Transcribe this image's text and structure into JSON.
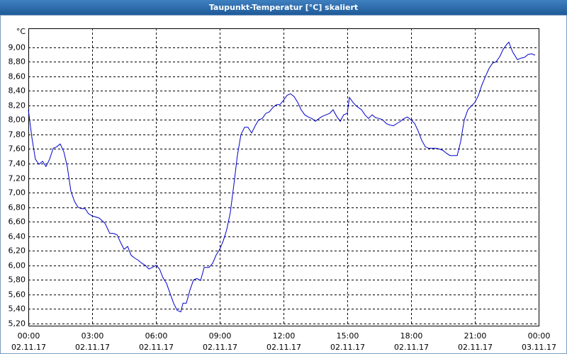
{
  "chart_data": {
    "type": "line",
    "title": "Taupunkt-Temperatur [°C] skaliert",
    "y_unit": "°C",
    "color": "#0000cc",
    "grid": true,
    "xlim": [
      0,
      24
    ],
    "ylim": [
      5.17,
      9.26
    ],
    "xticks": [
      {
        "value": 0,
        "label": "00:00"
      },
      {
        "value": 3,
        "label": "03:00"
      },
      {
        "value": 6,
        "label": "06:00"
      },
      {
        "value": 9,
        "label": "09:00"
      },
      {
        "value": 12,
        "label": "12:00"
      },
      {
        "value": 15,
        "label": "15:00"
      },
      {
        "value": 18,
        "label": "18:00"
      },
      {
        "value": 21,
        "label": "21:00"
      },
      {
        "value": 24,
        "label": "00:00"
      }
    ],
    "xtick_dates": [
      "02.11.17",
      "02.11.17",
      "02.11.17",
      "02.11.17",
      "02.11.17",
      "02.11.17",
      "02.11.17",
      "02.11.17",
      "03.11.17"
    ],
    "yticks": [
      {
        "value": 5.2,
        "label": "5,20"
      },
      {
        "value": 5.4,
        "label": "5,40"
      },
      {
        "value": 5.6,
        "label": "5,60"
      },
      {
        "value": 5.8,
        "label": "5,80"
      },
      {
        "value": 6.0,
        "label": "6,00"
      },
      {
        "value": 6.2,
        "label": "6,20"
      },
      {
        "value": 6.4,
        "label": "6,40"
      },
      {
        "value": 6.6,
        "label": "6,60"
      },
      {
        "value": 6.8,
        "label": "6,80"
      },
      {
        "value": 7.0,
        "label": "7,00"
      },
      {
        "value": 7.2,
        "label": "7,20"
      },
      {
        "value": 7.4,
        "label": "7,40"
      },
      {
        "value": 7.6,
        "label": "7,60"
      },
      {
        "value": 7.8,
        "label": "7,80"
      },
      {
        "value": 8.0,
        "label": "8,00"
      },
      {
        "value": 8.2,
        "label": "8,20"
      },
      {
        "value": 8.4,
        "label": "8,40"
      },
      {
        "value": 8.6,
        "label": "8,60"
      },
      {
        "value": 8.8,
        "label": "8,80"
      },
      {
        "value": 9.0,
        "label": "9,00"
      }
    ],
    "x": [
      0,
      0.17,
      0.33,
      0.5,
      0.67,
      0.83,
      1,
      1.17,
      1.33,
      1.5,
      1.67,
      1.83,
      2,
      2.17,
      2.33,
      2.5,
      2.67,
      2.83,
      3,
      3.33,
      3.6,
      3.83,
      4,
      4.17,
      4.33,
      4.5,
      4.67,
      4.83,
      5,
      5.17,
      5.33,
      5.5,
      5.67,
      5.83,
      6,
      6.17,
      6.33,
      6.5,
      6.67,
      6.83,
      7,
      7.17,
      7.27,
      7.43,
      7.6,
      7.77,
      7.93,
      8.1,
      8.27,
      8.5,
      8.67,
      8.83,
      9,
      9.17,
      9.33,
      9.5,
      9.67,
      9.83,
      10,
      10.17,
      10.33,
      10.5,
      10.67,
      10.83,
      11,
      11.17,
      11.33,
      11.5,
      11.67,
      11.83,
      12,
      12.17,
      12.33,
      12.5,
      12.67,
      12.83,
      13,
      13.17,
      13.33,
      13.5,
      13.67,
      13.83,
      14,
      14.17,
      14.33,
      14.5,
      14.67,
      14.83,
      15,
      15.1,
      15.27,
      15.43,
      15.67,
      15.83,
      16,
      16.17,
      16.33,
      16.5,
      16.67,
      16.83,
      17,
      17.17,
      17.33,
      17.5,
      17.67,
      17.83,
      18,
      18.17,
      18.33,
      18.5,
      18.67,
      18.83,
      19,
      19.17,
      19.33,
      19.5,
      19.67,
      19.83,
      20,
      20.17,
      20.33,
      20.5,
      20.67,
      20.83,
      21,
      21.17,
      21.33,
      21.5,
      21.67,
      21.83,
      22,
      22.17,
      22.33,
      22.5,
      22.6,
      22.77,
      23,
      23.17,
      23.33,
      23.5,
      23.67,
      23.83
    ],
    "values": [
      8.14,
      7.75,
      7.46,
      7.39,
      7.43,
      7.36,
      7.46,
      7.61,
      7.63,
      7.67,
      7.56,
      7.36,
      7.02,
      6.88,
      6.8,
      6.78,
      6.78,
      6.71,
      6.68,
      6.65,
      6.58,
      6.44,
      6.44,
      6.42,
      6.32,
      6.22,
      6.26,
      6.14,
      6.1,
      6.07,
      6.03,
      6.0,
      5.95,
      5.97,
      6.0,
      5.95,
      5.83,
      5.75,
      5.61,
      5.48,
      5.38,
      5.36,
      5.48,
      5.48,
      5.66,
      5.8,
      5.82,
      5.79,
      5.97,
      5.97,
      6.03,
      6.14,
      6.22,
      6.34,
      6.49,
      6.73,
      7.12,
      7.51,
      7.8,
      7.9,
      7.9,
      7.82,
      7.92,
      8.0,
      8.02,
      8.09,
      8.11,
      8.17,
      8.21,
      8.21,
      8.27,
      8.34,
      8.36,
      8.32,
      8.24,
      8.14,
      8.07,
      8.04,
      8.02,
      7.98,
      8.02,
      8.05,
      8.07,
      8.09,
      8.14,
      8.05,
      7.98,
      8.07,
      8.09,
      8.31,
      8.24,
      8.19,
      8.14,
      8.07,
      8.02,
      8.07,
      8.03,
      8.02,
      8.0,
      7.95,
      7.93,
      7.92,
      7.95,
      7.98,
      8.02,
      8.04,
      8.0,
      7.95,
      7.85,
      7.72,
      7.63,
      7.61,
      7.61,
      7.61,
      7.6,
      7.58,
      7.54,
      7.51,
      7.51,
      7.51,
      7.7,
      8.0,
      8.14,
      8.19,
      8.24,
      8.34,
      8.48,
      8.6,
      8.71,
      8.78,
      8.8,
      8.87,
      8.97,
      9.04,
      9.07,
      8.94,
      8.83,
      8.85,
      8.86,
      8.9,
      8.91,
      8.89
    ]
  }
}
